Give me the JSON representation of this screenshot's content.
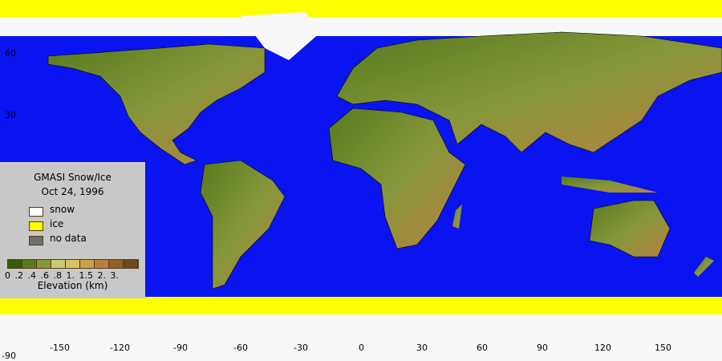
{
  "legend": {
    "title": "GMASI Snow/Ice",
    "date": "Oct 24, 1996",
    "items": [
      {
        "label": "snow",
        "color": "#ffffff"
      },
      {
        "label": "ice",
        "color": "#ffff00"
      },
      {
        "label": "no data",
        "color": "#6e6e6e"
      }
    ],
    "elevation_colors": [
      "#3b5a0a",
      "#577a1e",
      "#85973a",
      "#c8c878",
      "#d8c060",
      "#c8a048",
      "#b88040",
      "#906028",
      "#6e4a20"
    ],
    "elevation_ticks": "0  .2  .4  .6  .8  1.  1.5 2.  3.",
    "elevation_label": "Elevation (km)"
  },
  "map": {
    "ocean_color": "#0a14f0",
    "lon_labels": [
      "-150",
      "-120",
      "-90",
      "-60",
      "-30",
      "0",
      "30",
      "60",
      "90",
      "120",
      "150"
    ],
    "lat_labels": [
      "60",
      "30",
      "-90"
    ]
  }
}
